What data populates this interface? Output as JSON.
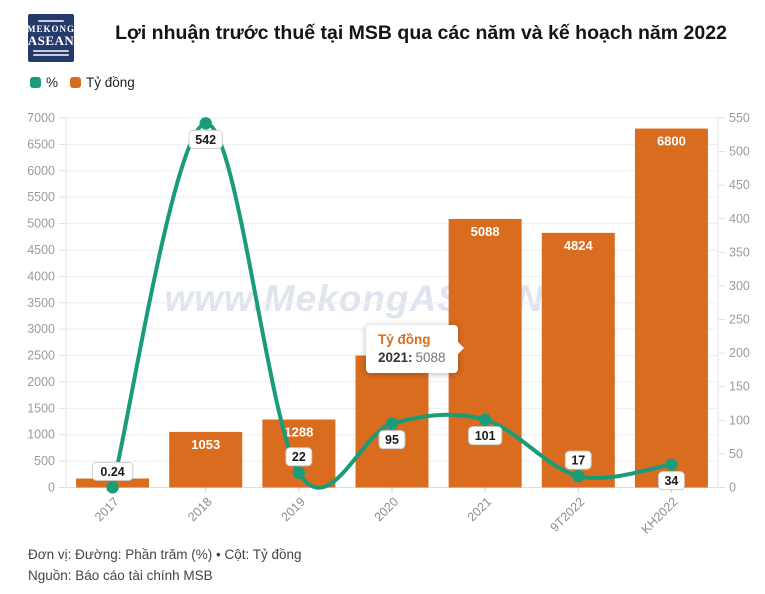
{
  "header": {
    "logo": {
      "line1": "MEKONG",
      "line2": "ASEAN",
      "bg": "#243a6b"
    },
    "title": "Lợi nhuận trước thuế tại MSB qua các năm và kế hoạch năm 2022"
  },
  "legend": {
    "items": [
      {
        "label": "%",
        "color": "#189c7a"
      },
      {
        "label": "Tỷ đồng",
        "color": "#d96c1f"
      }
    ]
  },
  "watermark": "www.MekongASEAN.vn",
  "tooltip": {
    "series": "Tỷ đồng",
    "label": "2021:",
    "value": "5088",
    "accent": "#d96c1f"
  },
  "chart_data": {
    "type": "bar",
    "subtype": "combo-bar-line-dual-axis",
    "title": "Lợi nhuận trước thuế tại MSB qua các năm và kế hoạch năm 2022",
    "categories": [
      "2017",
      "2018",
      "2019",
      "2020",
      "2021",
      "9T2022",
      "KH2022"
    ],
    "series": [
      {
        "name": "Tỷ đồng",
        "type": "bar",
        "axis": "left",
        "color": "#d96c1f",
        "values": [
          170,
          1053,
          1288,
          2500,
          5088,
          4824,
          6800
        ],
        "value_labels": [
          "",
          "1053",
          "1288",
          "",
          "5088",
          "4824",
          "6800"
        ]
      },
      {
        "name": "%",
        "type": "line",
        "axis": "right",
        "color": "#189c7a",
        "values": [
          0.24,
          542,
          22,
          95,
          101,
          17,
          34
        ],
        "value_labels": [
          "0.24",
          "542",
          "22",
          "95",
          "101",
          "17",
          "34"
        ],
        "label_position": [
          "above",
          "below",
          "above",
          "below",
          "below",
          "above",
          "below"
        ]
      }
    ],
    "left_axis": {
      "min": 0,
      "max": 7000,
      "step": 500
    },
    "right_axis": {
      "min": 0,
      "max": 550,
      "step": 50
    },
    "grid": true,
    "legend_position": "top-left"
  },
  "footer": {
    "line1": "Đơn vị: Đường: Phần trăm (%) • Cột: Tỷ đồng",
    "line2": "Nguồn: Báo cáo tài chính MSB"
  }
}
